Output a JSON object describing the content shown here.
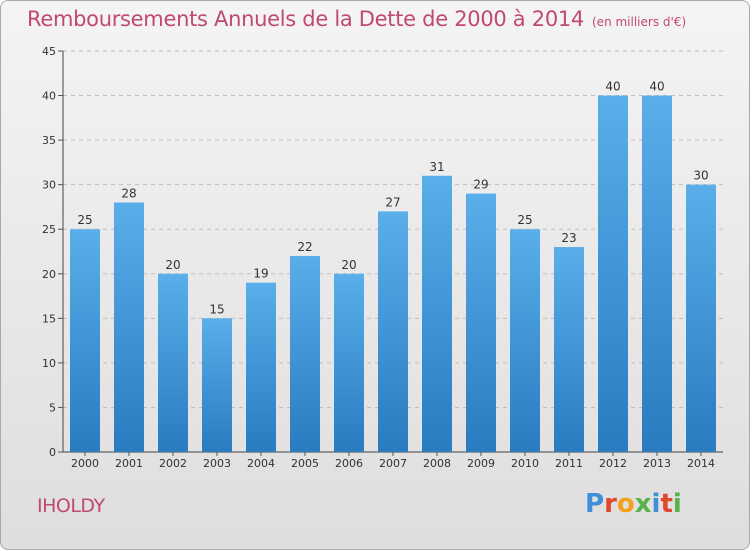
{
  "header": {
    "title": "Remboursements Annuels de la Dette de 2000 à 2014",
    "subtitle": "(en milliers d'€)"
  },
  "location_label": "IHOLDY",
  "logo": {
    "text": "Proxiti",
    "colors": [
      "#3d8fd8",
      "#e0482e",
      "#f5a01a",
      "#58b24a",
      "#3d8fd8",
      "#e0482e",
      "#58b24a"
    ]
  },
  "colors": {
    "bar_top": "#5aaeea",
    "bar_bottom": "#2a7bbf",
    "title": "#c04a6e",
    "text": "#333333",
    "grid": "#bfbfbf"
  },
  "chart_data": {
    "type": "bar",
    "title": "Remboursements Annuels de la Dette de 2000 à 2014",
    "subtitle": "(en milliers d'€)",
    "xlabel": "",
    "ylabel": "",
    "categories": [
      "2000",
      "2001",
      "2002",
      "2003",
      "2004",
      "2005",
      "2006",
      "2007",
      "2008",
      "2009",
      "2010",
      "2011",
      "2012",
      "2013",
      "2014"
    ],
    "values": [
      25,
      28,
      20,
      15,
      19,
      22,
      20,
      27,
      31,
      29,
      25,
      23,
      40,
      40,
      30
    ],
    "ylim": [
      0,
      45
    ],
    "yticks": [
      0,
      5,
      10,
      15,
      20,
      25,
      30,
      35,
      40,
      45
    ],
    "grid": "horizontal dashed",
    "legend": "none"
  }
}
